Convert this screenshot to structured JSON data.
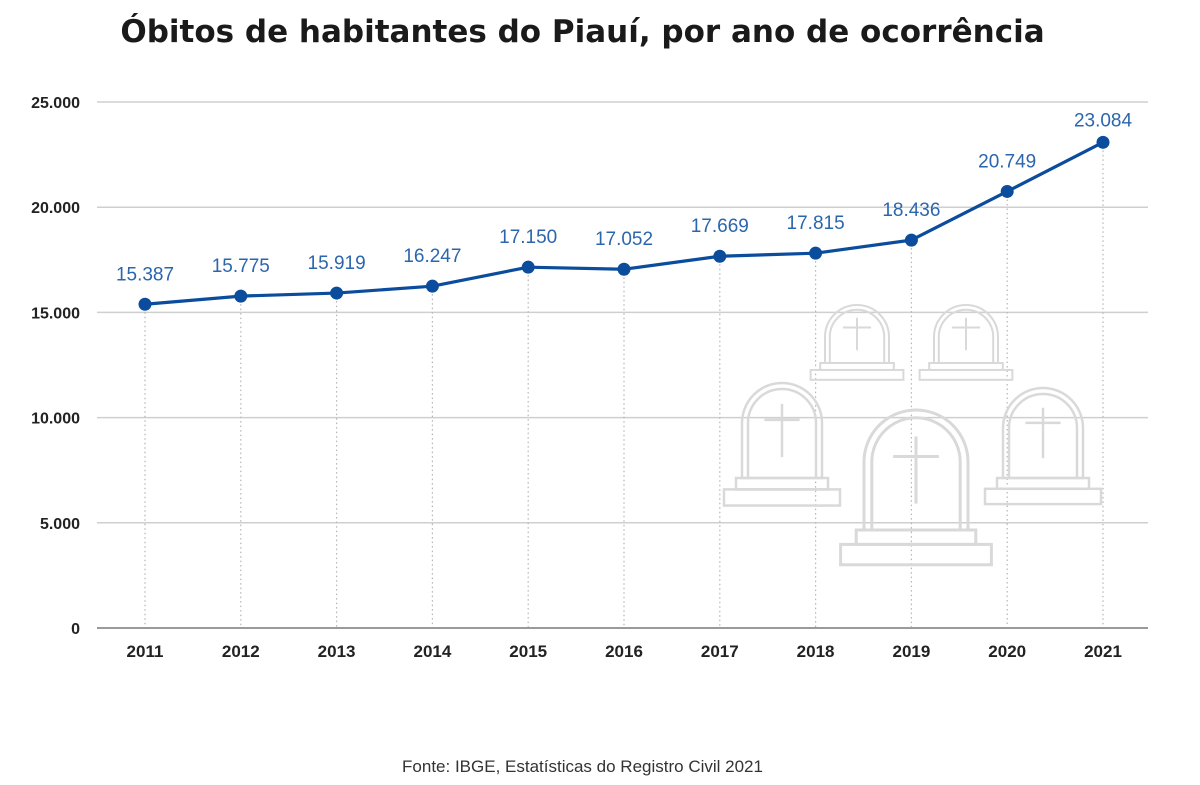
{
  "title": "Óbitos de habitantes do Piauí, por ano de ocorrência",
  "source": "Fonte: IBGE, Estatísticas do Registro Civil 2021",
  "colors": {
    "line": "#0b4d9c",
    "label": "#2b66ad",
    "grid": "#cfcfcf",
    "decoration": "#d9d9d9"
  },
  "decoration_icons": [
    "tombstone-icon"
  ],
  "chart_data": {
    "type": "line",
    "title": "Óbitos de habitantes do Piauí, por ano de ocorrência",
    "xlabel": "",
    "ylabel": "",
    "categories": [
      "2011",
      "2012",
      "2013",
      "2014",
      "2015",
      "2016",
      "2017",
      "2018",
      "2019",
      "2020",
      "2021"
    ],
    "values": [
      15387,
      15775,
      15919,
      16247,
      17150,
      17052,
      17669,
      17815,
      18436,
      20749,
      23084
    ],
    "value_labels": [
      "15.387",
      "15.775",
      "15.919",
      "16.247",
      "17.150",
      "17.052",
      "17.669",
      "17.815",
      "18.436",
      "20.749",
      "23.084"
    ],
    "ylim": [
      0,
      25000
    ],
    "yticks": [
      0,
      5000,
      10000,
      15000,
      20000,
      25000
    ],
    "ytick_labels": [
      "0",
      "5.000",
      "10.000",
      "15.000",
      "20.000",
      "25.000"
    ],
    "grid": "horizontal",
    "legend": "none"
  }
}
